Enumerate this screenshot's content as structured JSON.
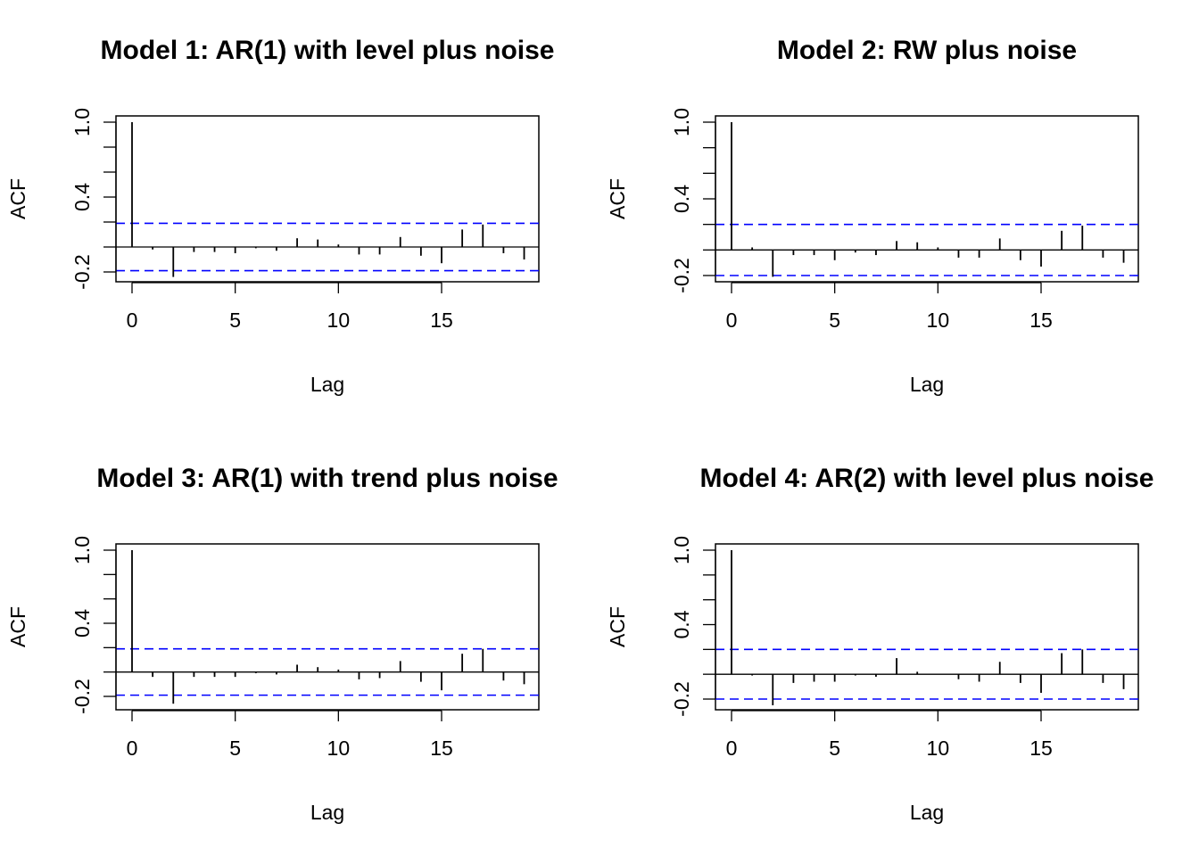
{
  "chart_data": [
    {
      "type": "bar",
      "title": "Model 1: AR(1) with level plus noise",
      "xlabel": "Lag",
      "ylabel": "ACF",
      "xlim": [
        0,
        19
      ],
      "ylim": [
        -0.28,
        1.0
      ],
      "xticks": [
        0,
        5,
        10,
        15
      ],
      "xtick_labels": [
        "0",
        "5",
        "10",
        "15"
      ],
      "yticks": [
        -0.2,
        0.0,
        0.2,
        0.4,
        0.6,
        0.8,
        1.0
      ],
      "ytick_labels": [
        "-0.2",
        "",
        "",
        "0.4",
        "",
        "",
        "1.0"
      ],
      "ci": 0.19,
      "ci_color": "#0000ff",
      "lags": [
        0,
        1,
        2,
        3,
        4,
        5,
        6,
        7,
        8,
        9,
        10,
        11,
        12,
        13,
        14,
        15,
        16,
        17,
        18,
        19
      ],
      "values": [
        1.0,
        -0.02,
        -0.24,
        -0.04,
        -0.04,
        -0.05,
        -0.01,
        -0.03,
        0.07,
        0.06,
        0.02,
        -0.06,
        -0.06,
        0.08,
        -0.07,
        -0.13,
        0.14,
        0.18,
        -0.05,
        -0.1
      ]
    },
    {
      "type": "bar",
      "title": "Model 2: RW plus noise",
      "xlabel": "Lag",
      "ylabel": "ACF",
      "xlim": [
        0,
        19
      ],
      "ylim": [
        -0.25,
        1.0
      ],
      "xticks": [
        0,
        5,
        10,
        15
      ],
      "xtick_labels": [
        "0",
        "5",
        "10",
        "15"
      ],
      "yticks": [
        -0.2,
        0.0,
        0.2,
        0.4,
        0.6,
        0.8,
        1.0
      ],
      "ytick_labels": [
        "-0.2",
        "",
        "",
        "0.4",
        "",
        "",
        "1.0"
      ],
      "ci": 0.2,
      "ci_color": "#0000ff",
      "lags": [
        0,
        1,
        2,
        3,
        4,
        5,
        6,
        7,
        8,
        9,
        10,
        11,
        12,
        13,
        14,
        15,
        16,
        17,
        18,
        19
      ],
      "values": [
        1.0,
        0.02,
        -0.21,
        -0.04,
        -0.04,
        -0.08,
        -0.02,
        -0.04,
        0.07,
        0.06,
        0.02,
        -0.06,
        -0.06,
        0.09,
        -0.08,
        -0.13,
        0.15,
        0.19,
        -0.06,
        -0.1
      ]
    },
    {
      "type": "bar",
      "title": "Model 3: AR(1) with trend plus noise",
      "xlabel": "Lag",
      "ylabel": "ACF",
      "xlim": [
        0,
        19
      ],
      "ylim": [
        -0.3,
        1.0
      ],
      "xticks": [
        0,
        5,
        10,
        15
      ],
      "xtick_labels": [
        "0",
        "5",
        "10",
        "15"
      ],
      "yticks": [
        -0.2,
        0.0,
        0.2,
        0.4,
        0.6,
        0.8,
        1.0
      ],
      "ytick_labels": [
        "-0.2",
        "",
        "",
        "0.4",
        "",
        "",
        "1.0"
      ],
      "ci": 0.19,
      "ci_color": "#0000ff",
      "lags": [
        0,
        1,
        2,
        3,
        4,
        5,
        6,
        7,
        8,
        9,
        10,
        11,
        12,
        13,
        14,
        15,
        16,
        17,
        18,
        19
      ],
      "values": [
        1.0,
        -0.04,
        -0.26,
        -0.04,
        -0.04,
        -0.04,
        -0.01,
        -0.02,
        0.06,
        0.04,
        0.02,
        -0.06,
        -0.05,
        0.09,
        -0.08,
        -0.15,
        0.15,
        0.19,
        -0.07,
        -0.1
      ]
    },
    {
      "type": "bar",
      "title": "Model 4: AR(2) with level plus noise",
      "xlabel": "Lag",
      "ylabel": "ACF",
      "xlim": [
        0,
        19
      ],
      "ylim": [
        -0.3,
        1.0
      ],
      "xticks": [
        0,
        5,
        10,
        15
      ],
      "xtick_labels": [
        "0",
        "5",
        "10",
        "15"
      ],
      "yticks": [
        -0.2,
        0.0,
        0.2,
        0.4,
        0.6,
        0.8,
        1.0
      ],
      "ytick_labels": [
        "-0.2",
        "",
        "",
        "0.4",
        "",
        "",
        "1.0"
      ],
      "ci": 0.2,
      "ci_color": "#0000ff",
      "lags": [
        0,
        1,
        2,
        3,
        4,
        5,
        6,
        7,
        8,
        9,
        10,
        11,
        12,
        13,
        14,
        15,
        16,
        17,
        18,
        19
      ],
      "values": [
        1.0,
        -0.01,
        -0.25,
        -0.07,
        -0.06,
        -0.06,
        -0.01,
        -0.02,
        0.13,
        0.02,
        0.0,
        -0.04,
        -0.06,
        0.1,
        -0.07,
        -0.15,
        0.17,
        0.2,
        -0.07,
        -0.12
      ]
    }
  ]
}
